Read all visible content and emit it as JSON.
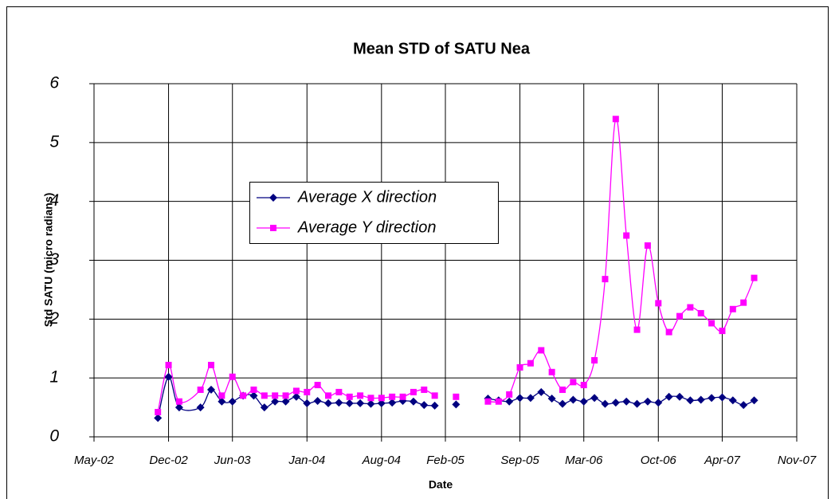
{
  "chart_data": {
    "type": "line",
    "title": "Mean STD of SATU Nea",
    "x_label": "Date",
    "y_label": "Std SATU (micro radians)",
    "x": [
      "2002-11",
      "2002-12",
      "2003-01",
      "2003-03",
      "2003-04",
      "2003-05",
      "2003-06",
      "2003-07",
      "2003-08",
      "2003-09",
      "2003-10",
      "2003-11",
      "2003-12",
      "2004-01",
      "2004-02",
      "2004-03",
      "2004-04",
      "2004-05",
      "2004-06",
      "2004-07",
      "2004-08",
      "2004-09",
      "2004-10",
      "2004-11",
      "2004-12",
      "2005-01",
      "2005-02",
      "2005-03",
      "2005-04",
      "2005-05",
      "2005-06",
      "2005-07",
      "2005-08",
      "2005-09",
      "2005-10",
      "2005-11",
      "2005-12",
      "2006-01",
      "2006-02",
      "2006-03",
      "2006-04",
      "2006-05",
      "2006-06",
      "2006-07",
      "2006-08",
      "2006-09",
      "2006-10",
      "2006-11",
      "2006-12",
      "2007-01",
      "2007-02",
      "2007-03",
      "2007-04",
      "2007-05",
      "2007-06",
      "2007-07"
    ],
    "series": [
      {
        "name": "Average X direction",
        "color": "#000080",
        "marker": "diamond",
        "values": [
          0.32,
          1.02,
          0.5,
          0.5,
          0.8,
          0.6,
          0.6,
          0.7,
          0.7,
          0.5,
          0.6,
          0.6,
          0.68,
          0.57,
          0.61,
          0.57,
          0.58,
          0.57,
          0.57,
          0.56,
          0.57,
          0.58,
          0.61,
          0.6,
          0.54,
          0.53,
          null,
          0.55,
          null,
          null,
          0.65,
          0.62,
          0.6,
          0.66,
          0.66,
          0.76,
          0.65,
          0.56,
          0.63,
          0.6,
          0.66,
          0.56,
          0.58,
          0.6,
          0.56,
          0.6,
          0.58,
          0.68,
          0.68,
          0.62,
          0.63,
          0.66,
          0.67,
          0.62,
          0.54,
          0.62
        ]
      },
      {
        "name": "Average Y direction",
        "color": "#ff00ff",
        "marker": "square",
        "values": [
          0.42,
          1.22,
          0.6,
          0.8,
          1.22,
          0.7,
          1.02,
          0.7,
          0.8,
          0.7,
          0.7,
          0.7,
          0.78,
          0.76,
          0.88,
          0.7,
          0.76,
          0.68,
          0.7,
          0.66,
          0.66,
          0.68,
          0.68,
          0.76,
          0.8,
          0.7,
          null,
          0.68,
          null,
          null,
          0.6,
          0.6,
          0.72,
          1.18,
          1.25,
          1.47,
          1.1,
          0.8,
          0.93,
          0.88,
          1.3,
          2.68,
          5.4,
          3.42,
          1.82,
          3.25,
          2.27,
          1.78,
          2.05,
          2.2,
          2.1,
          1.93,
          1.8,
          2.17,
          2.28,
          2.7
        ]
      }
    ],
    "xlim": [
      "2002-05",
      "2007-11"
    ],
    "xticks": [
      {
        "value": "2002-05",
        "label": "May-02"
      },
      {
        "value": "2002-12",
        "label": "Dec-02"
      },
      {
        "value": "2003-06",
        "label": "Jun-03"
      },
      {
        "value": "2004-01",
        "label": "Jan-04"
      },
      {
        "value": "2004-08",
        "label": "Aug-04"
      },
      {
        "value": "2005-02",
        "label": "Feb-05"
      },
      {
        "value": "2005-09",
        "label": "Sep-05"
      },
      {
        "value": "2006-03",
        "label": "Mar-06"
      },
      {
        "value": "2006-10",
        "label": "Oct-06"
      },
      {
        "value": "2007-04",
        "label": "Apr-07"
      },
      {
        "value": "2007-11",
        "label": "Nov-07"
      }
    ],
    "ylim": [
      0,
      6
    ],
    "yticks": [
      0,
      1,
      2,
      3,
      4,
      5,
      6
    ],
    "grid": true,
    "legend": "inside"
  }
}
